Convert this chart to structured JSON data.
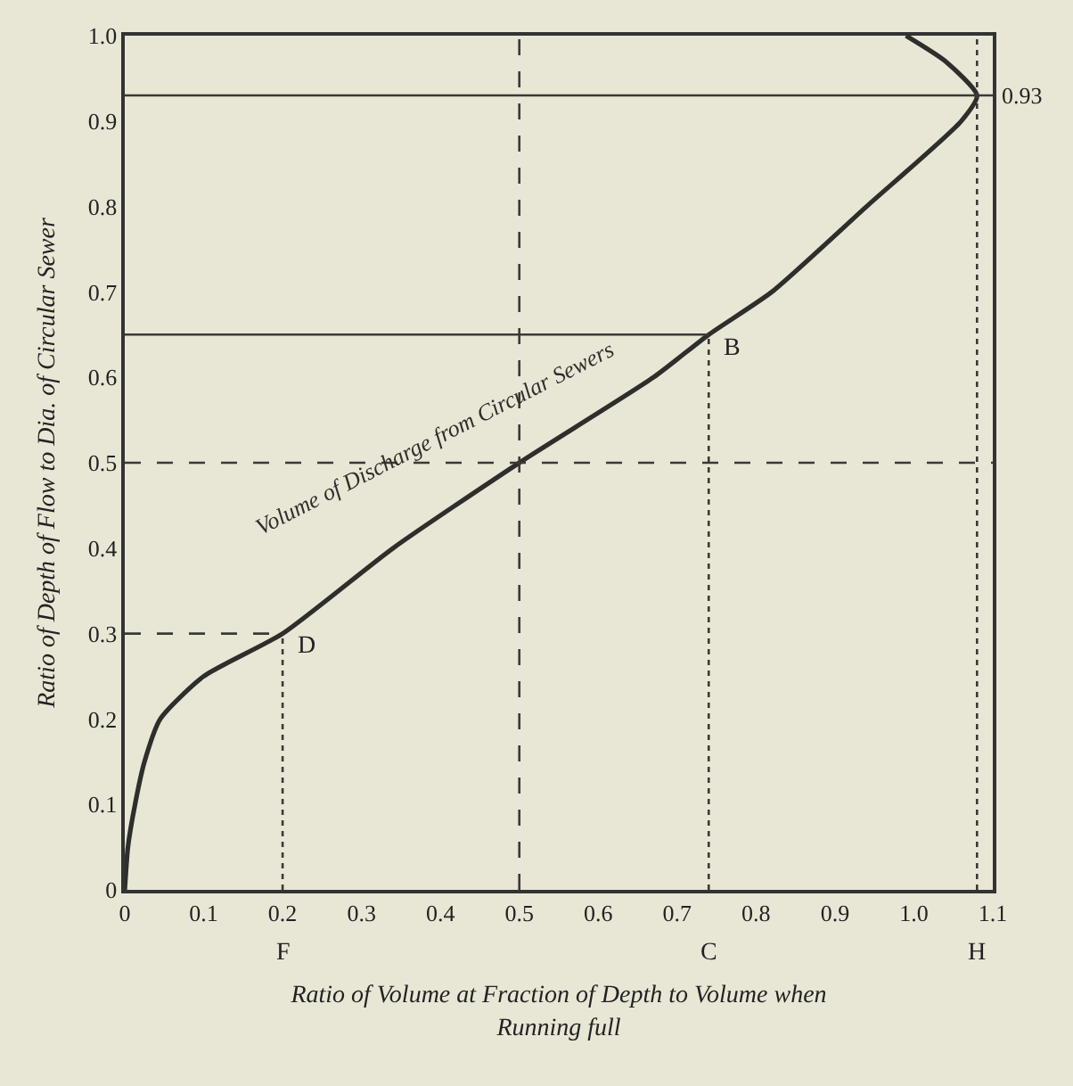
{
  "chart_data": {
    "type": "line",
    "xlabel": "Ratio of Volume at Fraction of Depth to Volume when Running full",
    "ylabel": "Ratio of Depth of Flow to Dia. of Circular Sewer",
    "xlim": [
      0,
      1.1
    ],
    "ylim": [
      0,
      1.0
    ],
    "xticks": [
      0,
      0.1,
      0.2,
      0.3,
      0.4,
      0.5,
      0.6,
      0.7,
      0.8,
      0.9,
      {
        "value": 1.0,
        "label": "1.0"
      },
      1.1
    ],
    "yticks": [
      0,
      0.1,
      0.2,
      0.3,
      0.4,
      0.5,
      0.6,
      0.7,
      0.8,
      0.9,
      {
        "value": 1.0,
        "label": "1.0"
      }
    ],
    "series": [
      {
        "name": "Volume of Discharge from Circular Sewers",
        "color": "#2e2e2a",
        "x": [
          0,
          0.004,
          0.013,
          0.025,
          0.045,
          0.1,
          0.2,
          0.34,
          0.5,
          0.67,
          0.74,
          0.82,
          0.94,
          1.06,
          1.08,
          1.04,
          0.99
        ],
        "values": [
          0,
          0.05,
          0.1,
          0.15,
          0.2,
          0.25,
          0.3,
          0.4,
          0.5,
          0.6,
          0.65,
          0.7,
          0.8,
          0.9,
          0.93,
          0.97,
          1.0
        ]
      },
      {
        "color": "#3a3a36",
        "line_style": "solid",
        "x": [
          0,
          0.74
        ],
        "values": [
          0.65,
          0.65
        ]
      },
      {
        "color": "#3a3a36",
        "line_style": "dashed",
        "x": [
          0,
          0.2
        ],
        "values": [
          0.3,
          0.3
        ]
      },
      {
        "color": "#3a3a36",
        "line_style": "dotted",
        "x": [
          0.2,
          0.2
        ],
        "values": [
          0,
          0.3
        ]
      },
      {
        "color": "#3a3a36",
        "line_style": "dotted",
        "x": [
          0.74,
          0.74
        ],
        "values": [
          0,
          0.65
        ]
      }
    ],
    "ref_lines": [
      {
        "axis": "y",
        "value": 0.93,
        "label": "0.93",
        "line_style": "solid",
        "color": "#3a3a36"
      },
      {
        "axis": "y",
        "value": 0.5,
        "line_style": "dashed",
        "color": "#3a3a36"
      },
      {
        "axis": "x",
        "value": 0.5,
        "line_style": "dashed",
        "color": "#3a3a36"
      },
      {
        "axis": "x",
        "value": 1.08,
        "line_style": "dotted",
        "color": "#3a3a36"
      }
    ],
    "annotations": [
      {
        "text": "B",
        "x": 0.74,
        "y": 0.65
      },
      {
        "text": "D",
        "x": 0.2,
        "y": 0.3
      },
      {
        "text": "F",
        "x": 0.2,
        "y": 0
      },
      {
        "text": "C",
        "x": 0.74,
        "y": 0
      },
      {
        "text": "H",
        "x": 1.08,
        "y": 0
      }
    ],
    "grid": false,
    "legend": false,
    "marker": "none",
    "line_style": "solid"
  }
}
